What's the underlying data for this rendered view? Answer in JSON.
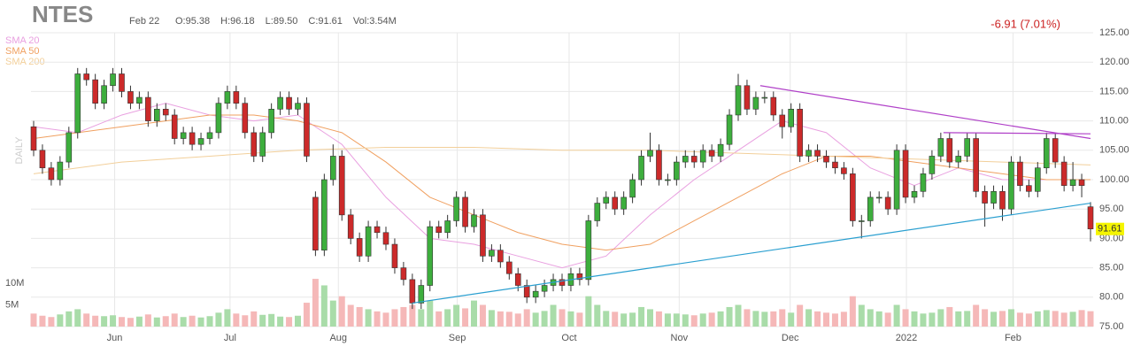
{
  "chart_data": {
    "type": "candlestick",
    "symbol": "NTES",
    "date": "Feb 22",
    "ohlc_text": [
      "O:95.38",
      "H:96.18",
      "L:89.50",
      "C:91.61",
      "Vol:3.54M"
    ],
    "change": "-6.91 (7.01%)",
    "period": "DAILY",
    "up_color": "#3dae3d",
    "down_color": "#cc2a2a",
    "vol_up_color": "#a9dca9",
    "vol_down_color": "#f5b8b8",
    "open": [
      109,
      105,
      102,
      100,
      103,
      108,
      118,
      117,
      113,
      116,
      118,
      115,
      113,
      114,
      110,
      112,
      111,
      107,
      108,
      106,
      107,
      108,
      113,
      115,
      113,
      108,
      104,
      108,
      112,
      114,
      112,
      113,
      97,
      88,
      100,
      104,
      94,
      90,
      87,
      92,
      91,
      89,
      85,
      83,
      79,
      82,
      92,
      91,
      93,
      97,
      92,
      94,
      87,
      88,
      86,
      84,
      82,
      80,
      81,
      82,
      83,
      82,
      84,
      83,
      93,
      96,
      97,
      95,
      97,
      100,
      104,
      105,
      100,
      100,
      103,
      104,
      103,
      105,
      104,
      106,
      111,
      116,
      112,
      114,
      114,
      111,
      109,
      112,
      104,
      105,
      104,
      103,
      102,
      101,
      93,
      93,
      97,
      97,
      95,
      105,
      97,
      98,
      101,
      104,
      107,
      103,
      104,
      107,
      98,
      96,
      98,
      95,
      103,
      99,
      98,
      102,
      107,
      103,
      99,
      100,
      95.38
    ],
    "high": [
      110,
      106,
      103,
      104,
      109,
      119,
      119,
      118,
      117,
      119,
      119,
      116,
      115,
      115,
      113,
      113,
      112,
      109,
      109,
      108,
      109,
      114,
      116,
      116,
      114,
      109,
      109,
      113,
      115,
      115,
      114,
      114,
      98,
      101,
      106,
      105,
      95,
      91,
      93,
      93,
      92,
      90,
      86,
      84,
      83,
      93,
      93,
      94,
      98,
      98,
      95,
      95,
      89,
      89,
      87,
      85,
      83,
      82,
      83,
      84,
      84,
      85,
      85,
      94,
      97,
      98,
      98,
      98,
      101,
      105,
      108,
      106,
      101,
      104,
      105,
      105,
      106,
      106,
      107,
      112,
      118,
      117,
      115,
      115,
      115,
      112,
      113,
      113,
      106,
      106,
      105,
      104,
      103,
      102,
      94,
      98,
      98,
      98,
      106,
      106,
      99,
      102,
      105,
      108,
      108,
      105,
      108,
      108,
      99,
      99,
      99,
      104,
      104,
      100,
      103,
      108,
      108,
      104,
      103,
      101,
      96.18
    ],
    "low": [
      104,
      101,
      99,
      99,
      102,
      107,
      116,
      112,
      112,
      115,
      114,
      112,
      112,
      109,
      109,
      110,
      106,
      106,
      105,
      105,
      106,
      107,
      112,
      112,
      107,
      103,
      103,
      107,
      111,
      111,
      111,
      103,
      87,
      87,
      99,
      93,
      89,
      86,
      86,
      90,
      88,
      84,
      82,
      78,
      78,
      81,
      90,
      90,
      92,
      91,
      91,
      86,
      86,
      85,
      83,
      81,
      79,
      79,
      80,
      81,
      81,
      81,
      82,
      82,
      92,
      95,
      94,
      94,
      96,
      99,
      103,
      99,
      99,
      99,
      102,
      102,
      102,
      103,
      103,
      105,
      110,
      111,
      111,
      113,
      110,
      107,
      108,
      103,
      103,
      103,
      102,
      101,
      100,
      92,
      90,
      92,
      96,
      94,
      94,
      96,
      96,
      97,
      100,
      103,
      102,
      102,
      103,
      97,
      92,
      95,
      93,
      94,
      98,
      97,
      97,
      101,
      102,
      98,
      98,
      97,
      89.5
    ],
    "close": [
      105,
      102,
      100,
      103,
      108,
      118,
      117,
      113,
      116,
      118,
      115,
      113,
      114,
      110,
      112,
      111,
      107,
      108,
      106,
      107,
      108,
      113,
      115,
      113,
      108,
      104,
      108,
      112,
      114,
      112,
      113,
      104,
      88,
      100,
      104,
      94,
      90,
      87,
      92,
      91,
      89,
      85,
      83,
      79,
      82,
      92,
      91,
      93,
      97,
      92,
      94,
      87,
      88,
      86,
      84,
      82,
      80,
      81,
      82,
      83,
      82,
      84,
      83,
      93,
      96,
      97,
      95,
      97,
      100,
      104,
      105,
      100,
      100,
      103,
      104,
      103,
      105,
      104,
      106,
      111,
      116,
      112,
      114,
      114,
      111,
      109,
      112,
      104,
      105,
      104,
      103,
      102,
      101,
      93,
      93,
      97,
      97,
      95,
      105,
      97,
      98,
      101,
      104,
      107,
      103,
      104,
      107,
      98,
      96,
      98,
      95,
      103,
      99,
      98,
      102,
      107,
      103,
      99,
      100,
      99,
      91.61
    ],
    "volume": [
      3,
      2.5,
      2.2,
      2.8,
      3.5,
      4,
      3,
      2.5,
      2.4,
      2.6,
      2.2,
      2,
      2.3,
      2.8,
      2.1,
      2.4,
      3,
      2.2,
      2.5,
      2.1,
      2.4,
      3.2,
      4,
      3,
      2.6,
      3.5,
      2.7,
      2.9,
      2.3,
      2.2,
      2.5,
      5.5,
      11,
      9.5,
      6,
      7,
      5,
      4.5,
      4,
      3.5,
      3.2,
      4,
      4.5,
      5,
      4,
      6,
      3.5,
      4,
      5,
      4.2,
      6,
      5,
      3.8,
      3.5,
      3.4,
      3,
      4,
      3.2,
      3.6,
      5,
      4,
      3.5,
      3.2,
      7,
      5,
      3.6,
      3.4,
      3,
      3.2,
      4.5,
      4,
      3.5,
      3,
      3,
      2.8,
      2.6,
      3,
      3.2,
      3.5,
      4.5,
      5,
      4,
      3.6,
      3.4,
      3.5,
      4,
      3.2,
      5,
      4,
      3.5,
      3.2,
      3,
      3.4,
      7,
      5,
      4,
      3.5,
      3.2,
      5,
      4,
      3.5,
      3,
      3.2,
      4,
      4.5,
      3.5,
      3.6,
      5,
      4,
      3.4,
      3.6,
      4,
      3.2,
      3,
      3.5,
      3.8,
      3.6,
      3.2,
      3.4,
      3.8,
      3.54
    ],
    "series": [
      {
        "name": "SMA 20",
        "color": "#e9a0e0",
        "x": [
          0,
          5,
          10,
          15,
          20,
          25,
          30,
          35,
          40,
          45,
          50,
          55,
          60,
          65,
          70,
          75,
          80,
          85,
          90,
          95,
          100,
          105,
          110,
          115,
          120
        ],
        "values": [
          109,
          108,
          111,
          113,
          111,
          110,
          111,
          106,
          97,
          90,
          89,
          87,
          85,
          87,
          94,
          100,
          105,
          110,
          108,
          102,
          99,
          102,
          100,
          100,
          100
        ]
      },
      {
        "name": "SMA 50",
        "color": "#f0a060",
        "x": [
          0,
          5,
          10,
          15,
          20,
          25,
          30,
          35,
          40,
          45,
          50,
          55,
          60,
          65,
          70,
          75,
          80,
          85,
          90,
          95,
          100,
          105,
          110,
          115,
          120
        ],
        "values": [
          107,
          108,
          109,
          110,
          111,
          111,
          110,
          108,
          103,
          97,
          94,
          91,
          89,
          88,
          89,
          93,
          97,
          101,
          104,
          104,
          103,
          102,
          101,
          100,
          100
        ]
      },
      {
        "name": "SMA 200",
        "color": "#f2cf9a",
        "x": [
          0,
          10,
          20,
          30,
          40,
          50,
          60,
          70,
          80,
          90,
          100,
          110,
          120
        ],
        "values": [
          101,
          103,
          104,
          105,
          105.5,
          105.5,
          105,
          105,
          104.5,
          104,
          103.5,
          103,
          102.5
        ]
      }
    ],
    "trendlines": [
      {
        "color": "#b040c8",
        "x": [
          82.5,
          120
        ],
        "values": [
          116,
          107
        ]
      },
      {
        "color": "#b040c8",
        "x": [
          103.3,
          120
        ],
        "values": [
          108,
          107.8
        ]
      },
      {
        "color": "#2a9fd0",
        "x": [
          43,
          120
        ],
        "values": [
          79,
          96
        ]
      }
    ],
    "ylim": [
      75,
      125
    ],
    "yticks": [
      {
        "value": 75,
        "label": "75.00"
      },
      {
        "value": 80,
        "label": "80.00"
      },
      {
        "value": 85,
        "label": "85.00"
      },
      {
        "value": 90,
        "label": "90.00"
      },
      {
        "value": 95,
        "label": "95.00"
      },
      {
        "value": 100,
        "label": "100.00"
      },
      {
        "value": 105,
        "label": "105.00"
      },
      {
        "value": 110,
        "label": "110.00"
      },
      {
        "value": 115,
        "label": "115.00"
      },
      {
        "value": 120,
        "label": "120.00"
      },
      {
        "value": 125,
        "label": "125.00"
      }
    ],
    "vlim": [
      0,
      20
    ],
    "vticks": [
      {
        "value": 5,
        "label": "5M"
      },
      {
        "value": 10,
        "label": "10M"
      }
    ],
    "xticks": [
      {
        "value": 9.2,
        "label": "Jun"
      },
      {
        "value": 22.3,
        "label": "Jul"
      },
      {
        "value": 34.6,
        "label": "Aug"
      },
      {
        "value": 48.1,
        "label": "Sep"
      },
      {
        "value": 60.8,
        "label": "Oct"
      },
      {
        "value": 73.3,
        "label": "Nov"
      },
      {
        "value": 85.9,
        "label": "Dec"
      },
      {
        "value": 99.1,
        "label": "2022"
      },
      {
        "value": 111.2,
        "label": "Feb"
      }
    ],
    "grid": true
  }
}
